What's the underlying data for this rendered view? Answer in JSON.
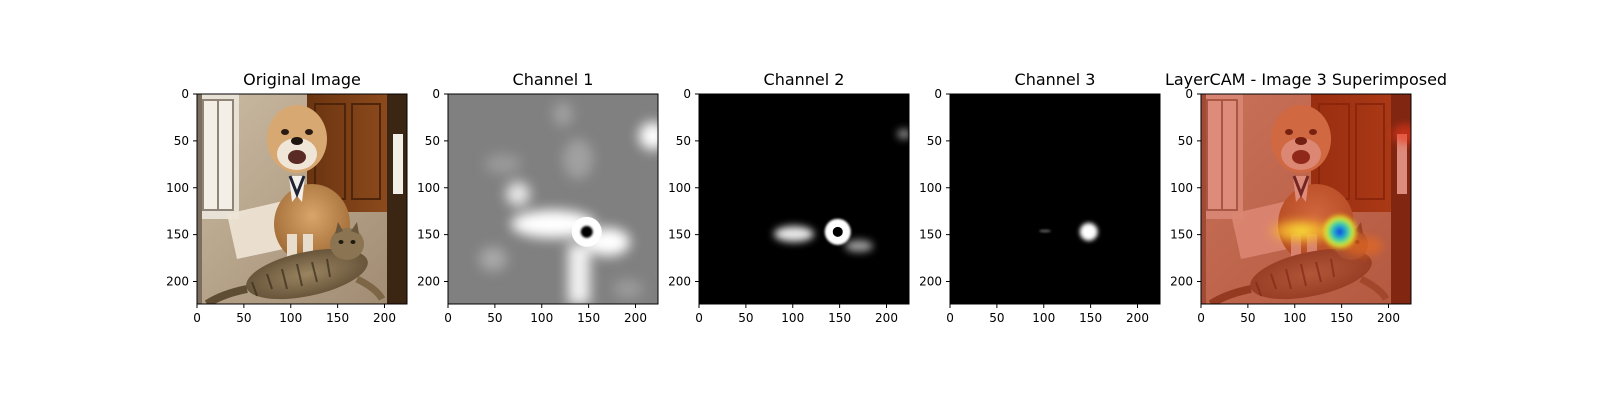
{
  "chart_data": {
    "type": "image-grid",
    "x_ticks": [
      0,
      50,
      100,
      150,
      200
    ],
    "y_ticks": [
      0,
      50,
      100,
      150,
      200
    ],
    "x_range": [
      0,
      224
    ],
    "y_range": [
      0,
      224
    ],
    "panels": [
      {
        "title": "Original Image",
        "image": "photo of a bulldog sitting behind a tabby cat lying on carpet"
      },
      {
        "title": "Channel 1",
        "image": "gray activation map with white blobs"
      },
      {
        "title": "Channel 2",
        "image": "black activation map with bright blobs"
      },
      {
        "title": "Channel 3",
        "image": "black activation map with a single bright spot"
      },
      {
        "title": "LayerCAM - Image 3 Superimposed",
        "image": "photo with red/jet heatmap overlay"
      }
    ],
    "hotspot": {
      "x": 148,
      "y": 147
    }
  }
}
